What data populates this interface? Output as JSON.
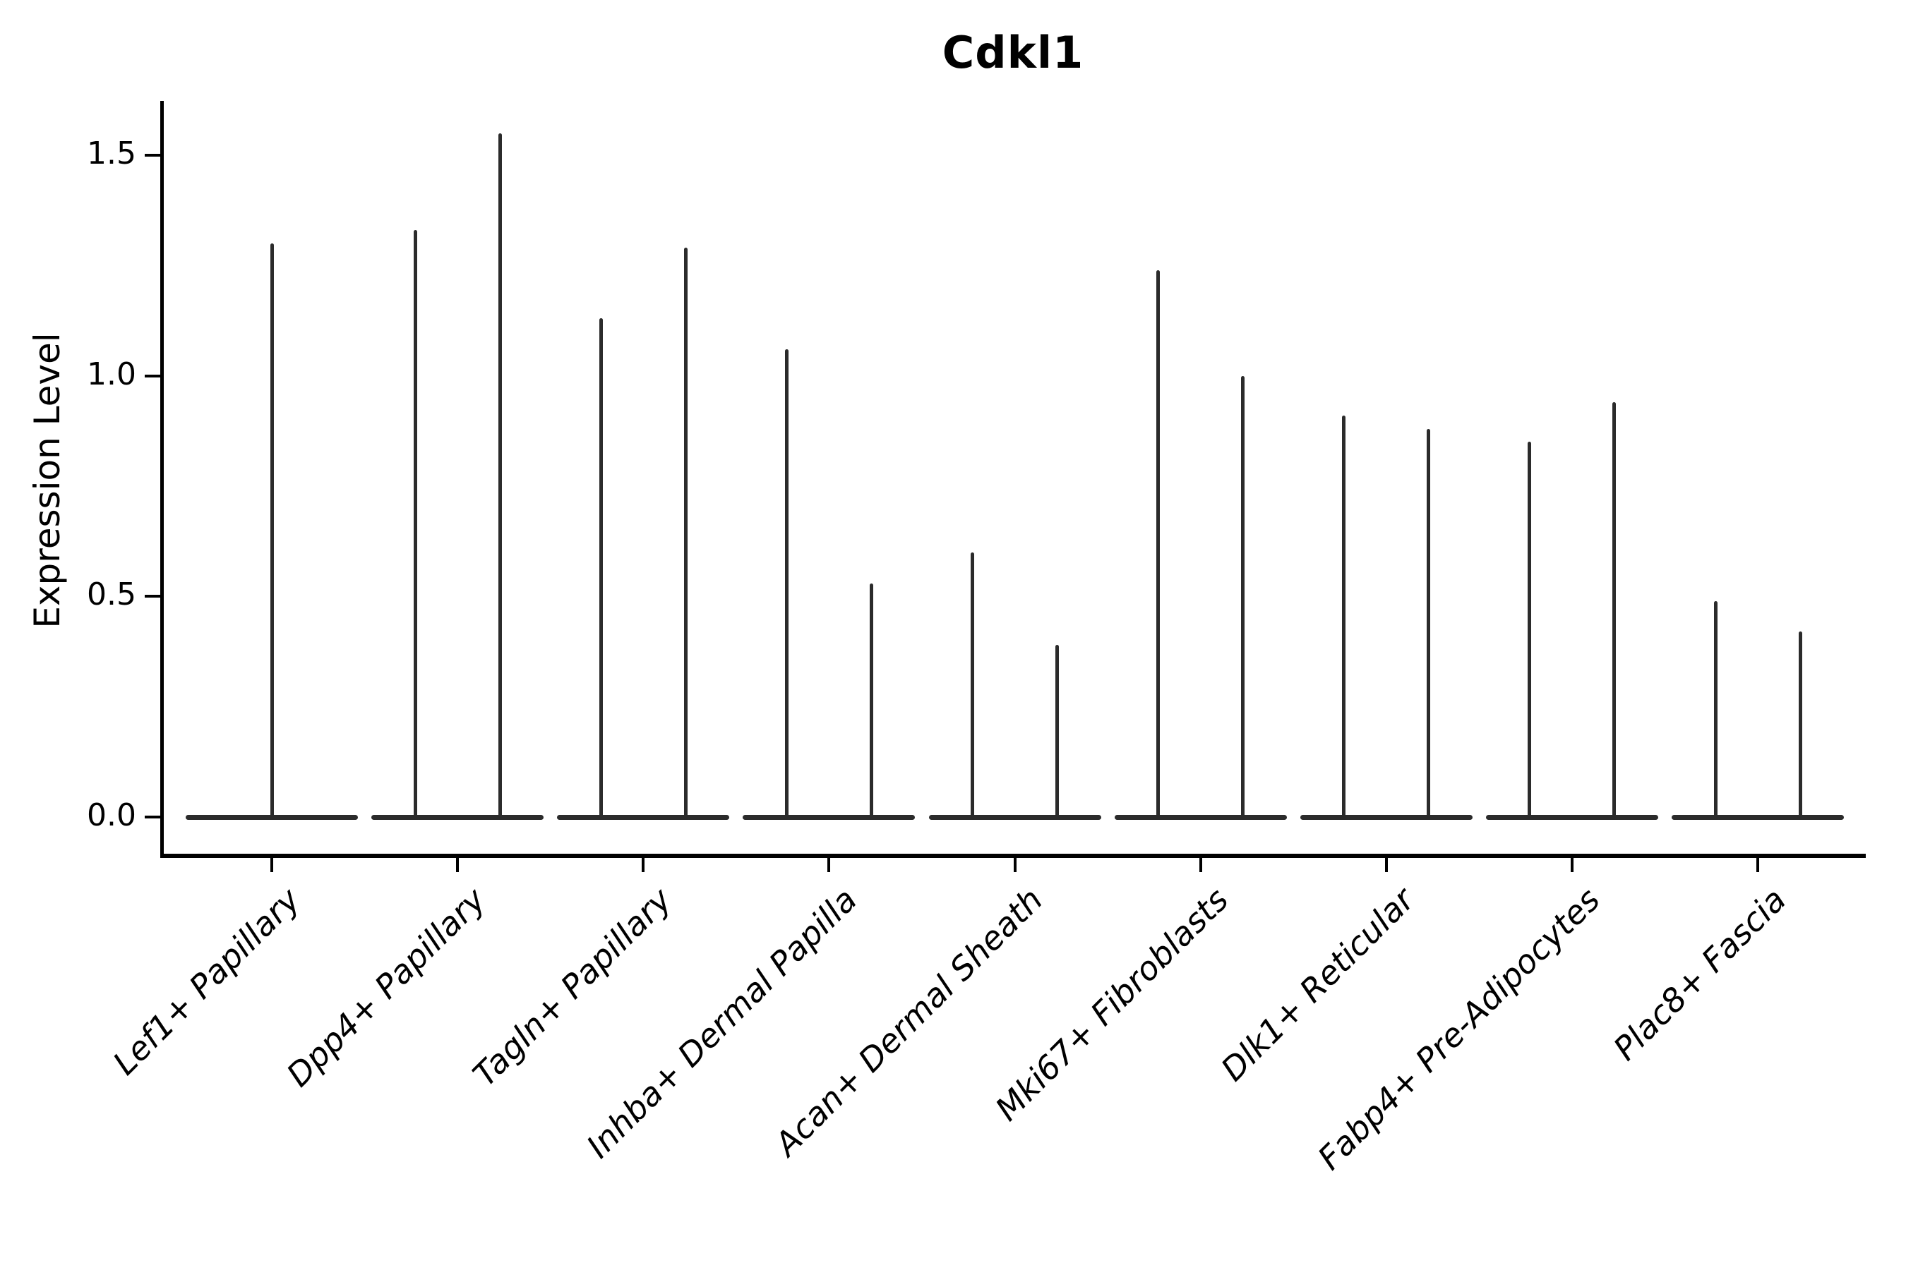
{
  "figure": {
    "title": "Cdkl1"
  },
  "chart_data": {
    "type": "violin",
    "title": "Cdkl1",
    "xlabel": "",
    "ylabel": "Expression Level",
    "ytick_labels": [
      "0.0",
      "0.5",
      "1.0",
      "1.5"
    ],
    "ytick_values": [
      0.0,
      0.5,
      1.0,
      1.5
    ],
    "ylim": [
      -0.083,
      1.623
    ],
    "grid": false,
    "legend": "none",
    "categories": [
      "Lef1+ Papillary",
      "Dpp4+ Papillary",
      "Tagln+ Papillary",
      "Inhba+ Dermal Papilla",
      "Acan+ Dermal Sheath",
      "Mki67+ Fibroblasts",
      "Dlk1+ Reticular",
      "Fabp4+ Pre-Adipocytes",
      "Plac8+ Fascia"
    ],
    "violins": [
      {
        "category": "Lef1+ Papillary",
        "max_expression": [
          1.3
        ]
      },
      {
        "category": "Dpp4+ Papillary",
        "max_expression": [
          1.33,
          1.55
        ]
      },
      {
        "category": "Tagln+ Papillary",
        "max_expression": [
          1.13,
          1.29
        ]
      },
      {
        "category": "Inhba+ Dermal Papilla",
        "max_expression": [
          1.06,
          0.53
        ]
      },
      {
        "category": "Acan+ Dermal Sheath",
        "max_expression": [
          0.6,
          0.39
        ]
      },
      {
        "category": "Mki67+ Fibroblasts",
        "max_expression": [
          1.24,
          1.0
        ]
      },
      {
        "category": "Dlk1+ Reticular",
        "max_expression": [
          0.91,
          0.88
        ]
      },
      {
        "category": "Fabp4+ Pre-Adipocytes",
        "max_expression": [
          0.85,
          0.94
        ]
      },
      {
        "category": "Plac8+ Fascia",
        "max_expression": [
          0.49,
          0.42
        ]
      }
    ],
    "style": {
      "line_color": "#2b2b2b",
      "axis_color": "#000000",
      "background": "#ffffff"
    }
  }
}
